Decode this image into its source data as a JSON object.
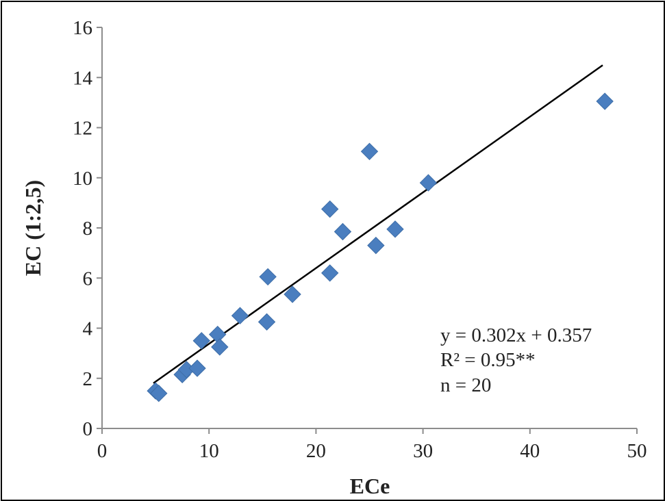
{
  "chart_data": {
    "type": "scatter",
    "xlabel": "ECe",
    "ylabel": "EC (1:2,5)",
    "xlim": [
      0,
      50
    ],
    "ylim": [
      0,
      16
    ],
    "x_ticks": [
      0,
      10,
      20,
      30,
      40,
      50
    ],
    "y_ticks": [
      0,
      2,
      4,
      6,
      8,
      10,
      12,
      14,
      16
    ],
    "grid": false,
    "legend": "none",
    "marker": "diamond",
    "marker_color": "#4a7ebf",
    "line_color": "#000000",
    "series": [
      {
        "points": [
          {
            "x": 5.0,
            "y": 1.5
          },
          {
            "x": 5.3,
            "y": 1.4
          },
          {
            "x": 7.5,
            "y": 2.15
          },
          {
            "x": 7.9,
            "y": 2.35
          },
          {
            "x": 8.9,
            "y": 2.4
          },
          {
            "x": 9.3,
            "y": 3.5
          },
          {
            "x": 10.8,
            "y": 3.75
          },
          {
            "x": 11.0,
            "y": 3.25
          },
          {
            "x": 12.9,
            "y": 4.5
          },
          {
            "x": 15.4,
            "y": 4.25
          },
          {
            "x": 15.5,
            "y": 6.05
          },
          {
            "x": 17.8,
            "y": 5.35
          },
          {
            "x": 21.3,
            "y": 6.2
          },
          {
            "x": 21.3,
            "y": 8.75
          },
          {
            "x": 22.5,
            "y": 7.85
          },
          {
            "x": 25.0,
            "y": 11.05
          },
          {
            "x": 25.6,
            "y": 7.3
          },
          {
            "x": 27.4,
            "y": 7.95
          },
          {
            "x": 30.5,
            "y": 9.8
          },
          {
            "x": 47.0,
            "y": 13.05
          }
        ]
      }
    ],
    "trendline": {
      "slope": 0.302,
      "intercept": 0.357,
      "x_start": 4.8,
      "x_end": 46.8
    },
    "annotations": [
      "y = 0.302x + 0.357",
      "R² = 0.95**",
      "n = 20"
    ]
  }
}
